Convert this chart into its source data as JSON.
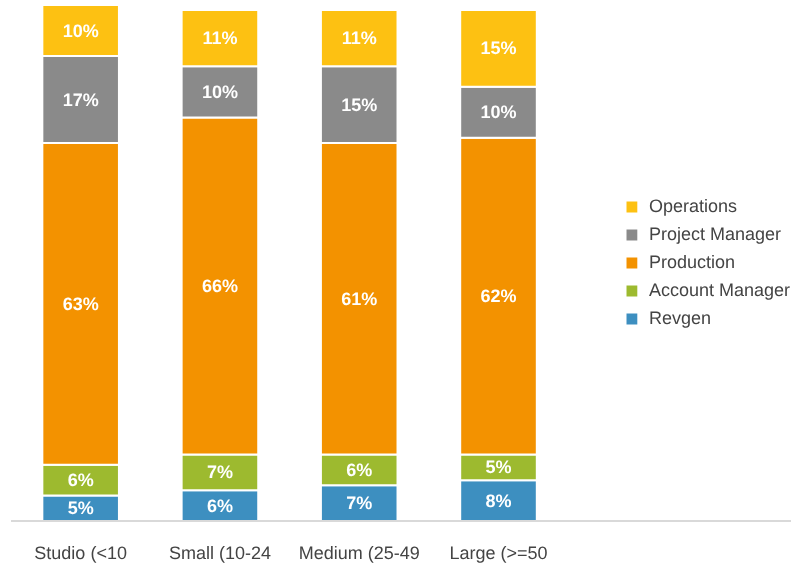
{
  "chart_data": {
    "type": "bar",
    "stacked": true,
    "categories": [
      "Studio (<10",
      "Small (10-24",
      "Medium (25-49",
      "Large (>=50"
    ],
    "series": [
      {
        "name": "Revgen",
        "color": "#3d8fc0",
        "values": [
          5,
          6,
          7,
          8
        ],
        "value_labels": [
          "5%",
          "6%",
          "7%",
          "8%"
        ]
      },
      {
        "name": "Account Manager",
        "color": "#9dba2f",
        "values": [
          6,
          7,
          6,
          5
        ],
        "value_labels": [
          "6%",
          "7%",
          "6%",
          "5%"
        ]
      },
      {
        "name": "Production",
        "color": "#f39200",
        "values": [
          63,
          66,
          61,
          62
        ],
        "value_labels": [
          "63%",
          "66%",
          "61%",
          "62%"
        ]
      },
      {
        "name": "Project Manager",
        "color": "#8a8a8a",
        "values": [
          17,
          10,
          15,
          10
        ],
        "value_labels": [
          "17%",
          "10%",
          "15%",
          "10%"
        ]
      },
      {
        "name": "Operations",
        "color": "#fdc112",
        "values": [
          10,
          11,
          11,
          15
        ],
        "value_labels": [
          "10%",
          "11%",
          "11%",
          "15%"
        ]
      }
    ],
    "legend": "right"
  }
}
